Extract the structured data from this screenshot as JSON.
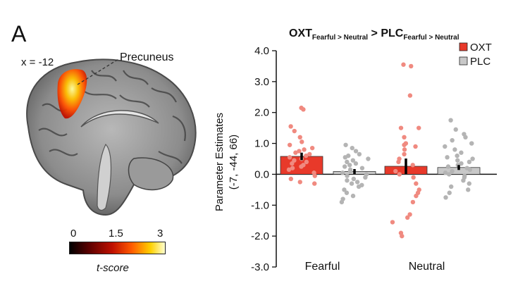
{
  "figure": {
    "panel_letter": "A",
    "brain": {
      "coordinate_label": "x = -12",
      "region_label": "Precuneus",
      "colorbar": {
        "min_label": "0",
        "mid_label": "1.5",
        "max_label": "3",
        "label": "t-score"
      }
    }
  },
  "chart_data": {
    "type": "bar",
    "title": "OXT",
    "title_sub1": "Fearful > Neutral",
    "title_mid": " > PLC",
    "title_sub2": "Fearful > Neutral",
    "ylabel": "Parameter Estimates",
    "ylabel2": "(-7, -44, 66)",
    "ylim": [
      -3.0,
      4.0
    ],
    "yticks": [
      "4.0",
      "3.0",
      "2.0",
      "1.0",
      "0.0",
      "-1.0",
      "-2.0",
      "-3.0"
    ],
    "ytick_values": [
      4,
      3,
      2,
      1,
      0,
      -1,
      -2,
      -3
    ],
    "categories": [
      "Fearful",
      "Neutral"
    ],
    "series": [
      {
        "name": "OXT",
        "color": "#e8392a",
        "dot_color": "#f08a80",
        "values": [
          0.58,
          0.26
        ],
        "errors": [
          0.12,
          0.25
        ]
      },
      {
        "name": "PLC",
        "color": "#c8c8c8",
        "dot_color": "#b4b4b4",
        "values": [
          0.09,
          0.22
        ],
        "errors": [
          0.08,
          0.08
        ]
      }
    ],
    "points": {
      "OXT_Fearful": [
        2.15,
        2.1,
        1.55,
        1.4,
        1.2,
        1.05,
        0.95,
        0.85,
        0.8,
        0.75,
        0.7,
        0.65,
        0.6,
        0.55,
        0.5,
        0.45,
        0.4,
        0.35,
        0.3,
        0.25,
        0.2,
        0.15,
        0.05,
        -0.05,
        -0.15,
        -0.25,
        -0.3
      ],
      "PLC_Fearful": [
        0.95,
        0.85,
        0.75,
        0.65,
        0.6,
        0.55,
        0.5,
        0.45,
        0.4,
        0.35,
        0.3,
        0.25,
        0.2,
        0.15,
        0.1,
        0.05,
        0.0,
        -0.05,
        -0.1,
        -0.15,
        -0.2,
        -0.25,
        -0.3,
        -0.35,
        -0.4,
        -0.5,
        -0.6,
        -0.7,
        -0.8,
        -0.9
      ],
      "OXT_Neutral": [
        3.55,
        3.5,
        2.55,
        1.5,
        1.5,
        1.2,
        1.0,
        0.95,
        0.9,
        0.8,
        0.65,
        0.5,
        0.4,
        0.3,
        0.1,
        0.0,
        -0.1,
        -0.3,
        -0.5,
        -0.6,
        -0.7,
        -0.9,
        -1.3,
        -1.4,
        -1.55,
        -1.9,
        -2.0
      ],
      "PLC_Neutral": [
        1.75,
        1.45,
        1.3,
        1.2,
        1.1,
        1.0,
        0.9,
        0.8,
        0.7,
        0.6,
        0.55,
        0.5,
        0.45,
        0.4,
        0.35,
        0.3,
        0.25,
        0.2,
        0.15,
        0.1,
        0.05,
        0.0,
        -0.05,
        -0.1,
        -0.2,
        -0.3,
        -0.4,
        -0.5,
        -0.6,
        -0.75
      ]
    },
    "legend": {
      "position": "top-right"
    }
  }
}
